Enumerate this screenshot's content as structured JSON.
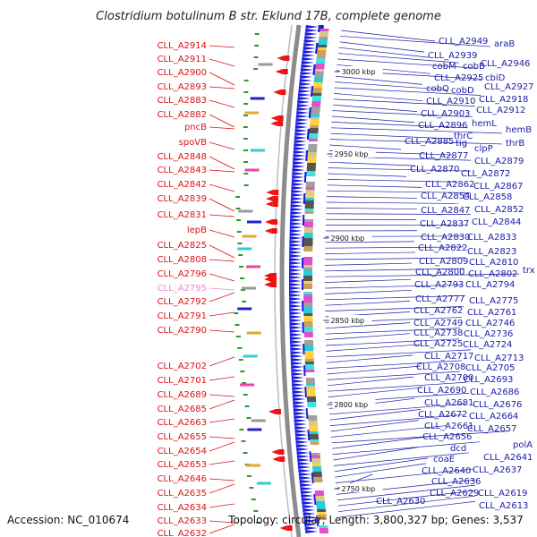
{
  "title": "Clostridium botulinum B str. Eklund 17B, complete genome",
  "footer": {
    "accession": "Accession: NC_010674",
    "summary": "Topology: circular; Length: 3,800,327 bp; Genes: 3,537"
  },
  "colors": {
    "left_label": "#dd1111",
    "left_label_highlight": "#ee88cc",
    "right_label": "#1a1aa8",
    "backbone": "#8c8c8c",
    "gene_arrow": "#1a1ae0",
    "reverse_feature": "#ee1111",
    "cds_tick": "#2a9a2a"
  },
  "scale_ticks": [
    "3000 kbp",
    "2950 kbp",
    "2900 kbp",
    "2850 kbp",
    "2800 kbp",
    "2750 kbp"
  ],
  "left_labels": [
    {
      "text": "CLL_A2914",
      "highlight": false
    },
    {
      "text": "CLL_A2911",
      "highlight": false
    },
    {
      "text": "CLL_A2900",
      "highlight": false
    },
    {
      "text": "CLL_A2893",
      "highlight": false
    },
    {
      "text": "CLL_A2883",
      "highlight": false
    },
    {
      "text": "CLL_A2882",
      "highlight": false
    },
    {
      "text": "pncB",
      "highlight": false
    },
    {
      "text": "spoVB",
      "highlight": false
    },
    {
      "text": "CLL_A2848",
      "highlight": false
    },
    {
      "text": "CLL_A2843",
      "highlight": false
    },
    {
      "text": "CLL_A2842",
      "highlight": false
    },
    {
      "text": "CLL_A2839",
      "highlight": false
    },
    {
      "text": "CLL_A2831",
      "highlight": false
    },
    {
      "text": "lepB",
      "highlight": false
    },
    {
      "text": "CLL_A2825",
      "highlight": false
    },
    {
      "text": "CLL_A2808",
      "highlight": false
    },
    {
      "text": "CLL_A2796",
      "highlight": false
    },
    {
      "text": "CLL_A2795",
      "highlight": true
    },
    {
      "text": "CLL_A2792",
      "highlight": false
    },
    {
      "text": "CLL_A2791",
      "highlight": false
    },
    {
      "text": "CLL_A2790",
      "highlight": false
    },
    {
      "text": "CLL_A2702",
      "highlight": false
    },
    {
      "text": "CLL_A2701",
      "highlight": false
    },
    {
      "text": "CLL_A2689",
      "highlight": false
    },
    {
      "text": "CLL_A2685",
      "highlight": false
    },
    {
      "text": "CLL_A2663",
      "highlight": false
    },
    {
      "text": "CLL_A2655",
      "highlight": false
    },
    {
      "text": "CLL_A2654",
      "highlight": false
    },
    {
      "text": "CLL_A2653",
      "highlight": false
    },
    {
      "text": "CLL_A2646",
      "highlight": false
    },
    {
      "text": "CLL_A2635",
      "highlight": false
    },
    {
      "text": "CLL_A2634",
      "highlight": false
    },
    {
      "text": "CLL_A2633",
      "highlight": false
    },
    {
      "text": "CLL_A2632",
      "highlight": false
    }
  ],
  "right_labels": [
    "CLL_A2949",
    "araB",
    "CLL_A2939",
    "cobM",
    "cobB",
    "CLL_A2946",
    "CLL_A2925",
    "cbiD",
    "cobQ",
    "cobD",
    "CLL_A2927",
    "CLL_A2910",
    "CLL_A2918",
    "CLL_A2903",
    "CLL_A2912",
    "CLL_A2896",
    "hemL",
    "hemB",
    "thrC",
    "thrB",
    "CLL_A2885",
    "tig",
    "clpP",
    "CLL_A2877",
    "CLL_A2879",
    "CLL_A2870",
    "CLL_A2872",
    "CLL_A2862",
    "CLL_A2867",
    "CLL_A2854",
    "CLL_A2858",
    "CLL_A2847",
    "CLL_A2852",
    "CLL_A2837",
    "CLL_A2844",
    "CLL_A2830",
    "CLL_A2833",
    "CLL_A2822",
    "CLL_A2823",
    "CLL_A2809",
    "CLL_A2810",
    "CLL_A2800",
    "CLL_A2802",
    "trx",
    "CLL_A2793",
    "CLL_A2794",
    "CLL_A2777",
    "CLL_A2775",
    "CLL_A2762",
    "CLL_A2761",
    "CLL_A2749",
    "CLL_A2746",
    "CLL_A2738",
    "CLL_A2736",
    "CLL_A2725",
    "CLL_A2724",
    "CLL_A2717",
    "CLL_A2713",
    "CLL_A2708",
    "CLL_A2705",
    "CLL_A2700",
    "CLL_A2693",
    "CLL_A2690",
    "CLL_A2686",
    "CLL_A2681",
    "CLL_A2676",
    "CLL_A2672",
    "CLL_A2664",
    "CLL_A2661",
    "CLL_A2657",
    "CLL_A2656",
    "dcd",
    "polA",
    "coaE",
    "CLL_A2641",
    "CLL_A2640",
    "CLL_A2637",
    "CLL_A2636",
    "CLL_A2629",
    "CLL_A2619",
    "CLL_A2630",
    "CLL_A2613"
  ]
}
